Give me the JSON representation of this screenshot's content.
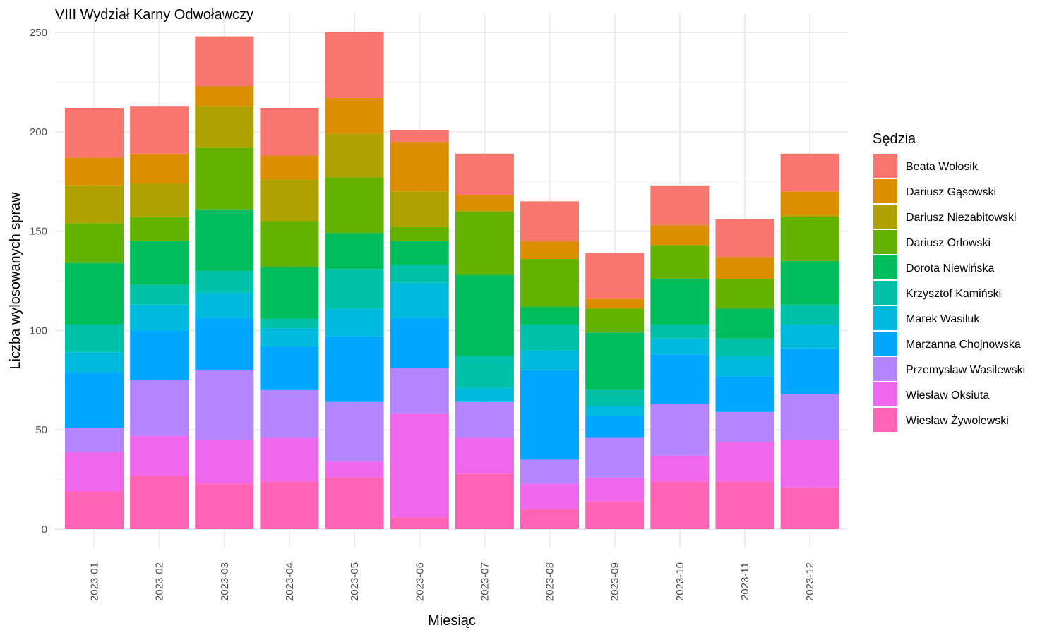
{
  "chart_data": {
    "type": "bar",
    "stacked": true,
    "title": "VIII Wydział Karny Odwoławczy",
    "xlabel": "Miesiąc",
    "ylabel": "Liczba wylosowanych spraw",
    "ylim": [
      0,
      250
    ],
    "yticks": [
      0,
      50,
      100,
      150,
      200,
      250
    ],
    "grid": true,
    "legend_title": "Sędzia",
    "legend_position": "right",
    "categories": [
      "2023-01",
      "2023-02",
      "2023-03",
      "2023-04",
      "2023-05",
      "2023-06",
      "2023-07",
      "2023-08",
      "2023-09",
      "2023-10",
      "2023-11",
      "2023-12"
    ],
    "series": [
      {
        "name": "Beata Wołosik",
        "color": "#F8766D",
        "values": [
          25,
          24,
          25,
          24,
          33,
          6,
          21,
          20,
          23,
          20,
          19,
          19
        ]
      },
      {
        "name": "Dariusz Gąsowski",
        "color": "#DB8E00",
        "values": [
          14,
          15,
          10,
          12,
          18,
          25,
          8,
          9,
          5,
          10,
          11,
          12
        ]
      },
      {
        "name": "Dariusz Niezabitowski",
        "color": "#AEA200",
        "values": [
          19,
          17,
          21,
          21,
          22,
          18,
          0,
          0,
          0,
          0,
          0,
          1
        ]
      },
      {
        "name": "Dariusz Orłowski",
        "color": "#64B200",
        "values": [
          20,
          12,
          31,
          23,
          28,
          7,
          32,
          24,
          12,
          17,
          15,
          22
        ]
      },
      {
        "name": "Dorota Niewińska",
        "color": "#00BD5C",
        "values": [
          31,
          22,
          31,
          26,
          18,
          12,
          41,
          9,
          29,
          23,
          15,
          22
        ]
      },
      {
        "name": "Krzysztof Kamiński",
        "color": "#00C1A7",
        "values": [
          14,
          10,
          11,
          5,
          20,
          9,
          16,
          13,
          8,
          7,
          9,
          10
        ]
      },
      {
        "name": "Marek Wasiluk",
        "color": "#00BADE",
        "values": [
          10,
          13,
          13,
          9,
          14,
          18,
          7,
          10,
          5,
          8,
          10,
          12
        ]
      },
      {
        "name": "Marzanna Chojnowska",
        "color": "#00A6FF",
        "values": [
          28,
          25,
          26,
          22,
          33,
          25,
          0,
          45,
          11,
          25,
          18,
          23
        ]
      },
      {
        "name": "Przemysław Wasilewski",
        "color": "#B385FF",
        "values": [
          12,
          28,
          35,
          24,
          30,
          23,
          18,
          12,
          20,
          26,
          15,
          23
        ]
      },
      {
        "name": "Wiesław Oksiuta",
        "color": "#EF67EB",
        "values": [
          20,
          20,
          22,
          22,
          8,
          52,
          18,
          13,
          12,
          13,
          20,
          24
        ]
      },
      {
        "name": "Wiesław Żywolewski",
        "color": "#FF63B6",
        "values": [
          19,
          27,
          23,
          24,
          26,
          6,
          28,
          10,
          14,
          24,
          24,
          21
        ]
      }
    ]
  }
}
